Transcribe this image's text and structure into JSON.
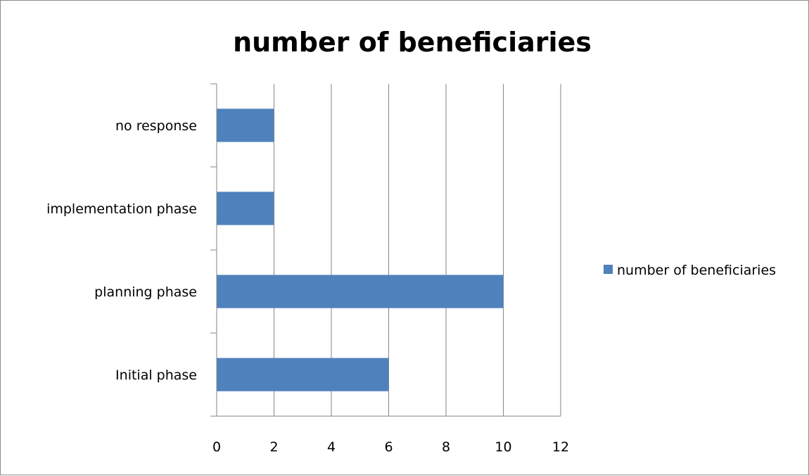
{
  "chart_data": {
    "type": "bar",
    "orientation": "horizontal",
    "title": "number of beneficiaries",
    "categories": [
      "Initial phase",
      "planning phase",
      "implementation phase",
      "no response"
    ],
    "series": [
      {
        "name": "number of beneficiaries",
        "values": [
          6,
          10,
          2,
          2
        ],
        "color": "#4f81bd"
      }
    ],
    "xlabel": "",
    "ylabel": "",
    "xlim": [
      0,
      12
    ],
    "x_ticks": [
      0,
      2,
      4,
      6,
      8,
      10,
      12
    ],
    "grid": "vertical-major",
    "legend_position": "right",
    "gridline_color": "#868686",
    "axis_color": "#868686"
  }
}
